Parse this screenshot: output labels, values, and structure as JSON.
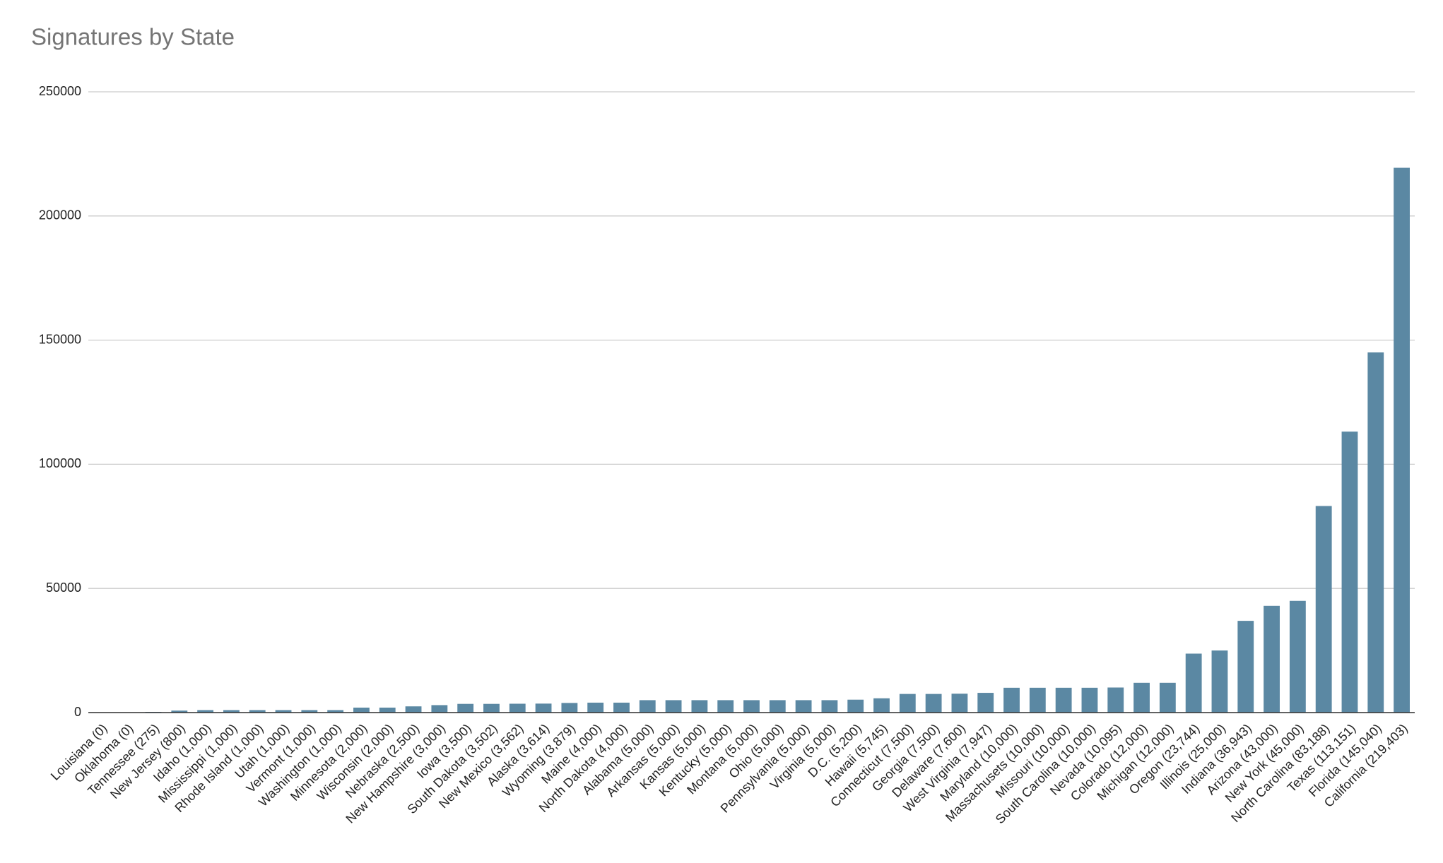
{
  "chart_data": {
    "type": "bar",
    "title": "Signatures by State",
    "categories": [
      "Louisiana (0)",
      "Oklahoma (0)",
      "Tennessee (275)",
      "New Jersey (800)",
      "Idaho (1,000)",
      "Mississippi (1,000)",
      "Rhode Island (1,000)",
      "Utah (1,000)",
      "Vermont (1,000)",
      "Washington (1,000)",
      "Minnesota (2,000)",
      "Wisconsin (2,000)",
      "Nebraska (2,500)",
      "New Hampshire (3,000)",
      "Iowa (3,500)",
      "South Dakota (3,502)",
      "New Mexico (3,562)",
      "Alaska (3,614)",
      "Wyoming (3,879)",
      "Maine (4,000)",
      "North Dakota (4,000)",
      "Alabama (5,000)",
      "Arkansas (5,000)",
      "Kansas (5,000)",
      "Kentucky (5,000)",
      "Montana (5,000)",
      "Ohio (5,000)",
      "Pennsylvania (5,000)",
      "Virginia (5,000)",
      "D.C. (5,200)",
      "Hawaii (5,745)",
      "Connecticut (7,500)",
      "Georgia (7,500)",
      "Delaware (7,600)",
      "West Virginia (7,947)",
      "Maryland (10,000)",
      "Massachusets (10,000)",
      "Missouri (10,000)",
      "South Carolina (10,000)",
      "Nevada (10,095)",
      "Colorado (12,000)",
      "Michigan (12,000)",
      "Oregon (23,744)",
      "Illinois (25,000)",
      "Indiana (36,943)",
      "Arizona (43,000)",
      "New York (45,000)",
      "North Carolina (83,188)",
      "Texas (113,151)",
      "Florida (145,040)",
      "California (219,403)"
    ],
    "values": [
      0,
      0,
      275,
      800,
      1000,
      1000,
      1000,
      1000,
      1000,
      1000,
      2000,
      2000,
      2500,
      3000,
      3500,
      3502,
      3562,
      3614,
      3879,
      4000,
      4000,
      5000,
      5000,
      5000,
      5000,
      5000,
      5000,
      5000,
      5000,
      5200,
      5745,
      7500,
      7500,
      7600,
      7947,
      10000,
      10000,
      10000,
      10000,
      10095,
      12000,
      12000,
      23744,
      25000,
      36943,
      43000,
      45000,
      83188,
      113151,
      145040,
      219403
    ],
    "color": "#5b88a3",
    "ylim": [
      0,
      250000
    ],
    "yticks": [
      0,
      50000,
      100000,
      150000,
      200000,
      250000
    ],
    "grid": true
  }
}
